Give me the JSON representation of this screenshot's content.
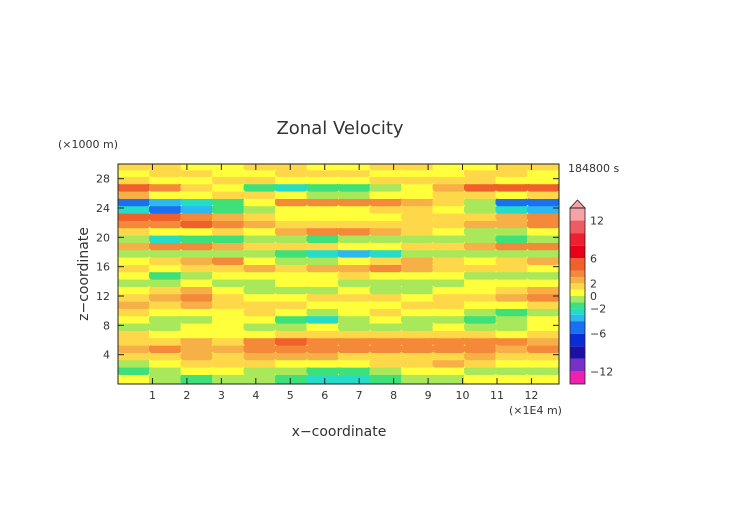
{
  "chart_data": {
    "type": "heatmap",
    "title": "Zonal Velocity",
    "xlabel": "x−coordinate",
    "ylabel": "z−coordinate",
    "x_unit": "(×1E4 m)",
    "y_unit": "(×1000 m)",
    "time_label": "184800 s",
    "xlim": [
      0,
      12.8
    ],
    "ylim": [
      0,
      30
    ],
    "x_ticks": [
      "1",
      "2",
      "3",
      "4",
      "5",
      "6",
      "7",
      "8",
      "9",
      "10",
      "11",
      "12"
    ],
    "y_ticks": [
      "4",
      "8",
      "12",
      "16",
      "20",
      "24",
      "28"
    ],
    "colorbar": {
      "tick_labels": [
        "12",
        "6",
        "2",
        "0",
        "−2",
        "−6",
        "−12"
      ],
      "tick_values": [
        12,
        6,
        2,
        0,
        -2,
        -6,
        -12
      ],
      "levels": [
        {
          "min": 12,
          "max": 14,
          "color": "#f6a3a8"
        },
        {
          "min": 10,
          "max": 12,
          "color": "#f05a64"
        },
        {
          "min": 8,
          "max": 10,
          "color": "#ee1f30"
        },
        {
          "min": 6,
          "max": 8,
          "color": "#e8001a"
        },
        {
          "min": 4,
          "max": 6,
          "color": "#f0602a"
        },
        {
          "min": 3,
          "max": 4,
          "color": "#f5893a"
        },
        {
          "min": 2,
          "max": 3,
          "color": "#f7b048"
        },
        {
          "min": 1,
          "max": 2,
          "color": "#ffd84a"
        },
        {
          "min": 0,
          "max": 1,
          "color": "#ffff3c"
        },
        {
          "min": -1,
          "max": 0,
          "color": "#a8e85a"
        },
        {
          "min": -2,
          "max": -1,
          "color": "#3ee07a"
        },
        {
          "min": -3,
          "max": -2,
          "color": "#24dcc8"
        },
        {
          "min": -4,
          "max": -3,
          "color": "#2cb8f0"
        },
        {
          "min": -6,
          "max": -4,
          "color": "#1a70f0"
        },
        {
          "min": -8,
          "max": -6,
          "color": "#0a2cd8"
        },
        {
          "min": -10,
          "max": -8,
          "color": "#1a10a8"
        },
        {
          "min": -12,
          "max": -10,
          "color": "#7a30c8"
        },
        {
          "min": -14,
          "max": -12,
          "color": "#f020b0"
        }
      ]
    },
    "bands": [
      {
        "z": 0.8,
        "x": 0,
        "values": [
          0,
          -1,
          -2,
          -1,
          -1,
          -2,
          -3,
          -3,
          -2,
          -1,
          -1,
          0,
          0,
          0
        ]
      },
      {
        "z": 1.8,
        "x": 0,
        "values": [
          -2,
          -1,
          0,
          0,
          -1,
          -1,
          -2,
          -2,
          -1,
          0,
          0,
          -1,
          -1,
          -1
        ]
      },
      {
        "z": 2.8,
        "x": 0,
        "values": [
          -1,
          0,
          1,
          1,
          1,
          0,
          0,
          0,
          1,
          1,
          2,
          1,
          0,
          0
        ]
      },
      {
        "z": 3.8,
        "x": 0,
        "values": [
          1,
          1,
          2,
          1,
          2,
          2,
          2,
          1,
          1,
          1,
          1,
          2,
          1,
          1
        ]
      },
      {
        "z": 4.8,
        "x": 0,
        "values": [
          2,
          3,
          2,
          2,
          3,
          3,
          3,
          3,
          3,
          3,
          3,
          3,
          2,
          3
        ]
      },
      {
        "z": 5.8,
        "x": 0,
        "values": [
          1,
          1,
          2,
          1,
          3,
          4,
          3,
          3,
          3,
          3,
          3,
          3,
          3,
          2
        ]
      },
      {
        "z": 6.8,
        "x": 0,
        "values": [
          1,
          0,
          0,
          0,
          0,
          1,
          1,
          1,
          1,
          1,
          1,
          1,
          0,
          1
        ]
      },
      {
        "z": 7.8,
        "x": 0,
        "values": [
          -1,
          -1,
          0,
          0,
          -1,
          -1,
          0,
          -1,
          -1,
          -1,
          0,
          -1,
          -1,
          0
        ]
      },
      {
        "z": 8.8,
        "x": 0,
        "values": [
          0,
          -1,
          -1,
          0,
          0,
          -2,
          -3,
          -1,
          0,
          -1,
          -1,
          -2,
          -1,
          0
        ]
      },
      {
        "z": 9.8,
        "x": 0,
        "values": [
          1,
          0,
          0,
          0,
          1,
          0,
          -1,
          0,
          1,
          0,
          0,
          -1,
          -2,
          -1
        ]
      },
      {
        "z": 10.8,
        "x": 0,
        "values": [
          2,
          1,
          2,
          1,
          1,
          1,
          0,
          0,
          0,
          1,
          1,
          0,
          0,
          1
        ]
      },
      {
        "z": 11.8,
        "x": 0,
        "values": [
          1,
          2,
          3,
          1,
          0,
          0,
          1,
          1,
          1,
          0,
          1,
          1,
          2,
          3
        ]
      },
      {
        "z": 12.8,
        "x": 0,
        "values": [
          0,
          1,
          2,
          0,
          -1,
          -1,
          -1,
          0,
          -1,
          -1,
          0,
          0,
          1,
          2
        ]
      },
      {
        "z": 13.8,
        "x": 0,
        "values": [
          -1,
          -1,
          0,
          -1,
          -1,
          0,
          0,
          -1,
          -1,
          -1,
          -1,
          0,
          0,
          0
        ]
      },
      {
        "z": 14.8,
        "x": 0,
        "values": [
          0,
          -2,
          -1,
          0,
          0,
          0,
          0,
          1,
          0,
          0,
          0,
          -1,
          -1,
          -1
        ]
      },
      {
        "z": 15.8,
        "x": 0,
        "values": [
          1,
          0,
          1,
          1,
          2,
          1,
          2,
          2,
          3,
          2,
          1,
          1,
          1,
          0
        ]
      },
      {
        "z": 16.8,
        "x": 0,
        "values": [
          0,
          1,
          2,
          3,
          0,
          -1,
          -1,
          0,
          1,
          2,
          1,
          0,
          1,
          2
        ]
      },
      {
        "z": 17.8,
        "x": 0,
        "values": [
          -1,
          -1,
          -1,
          -1,
          -1,
          -2,
          -3,
          -4,
          -3,
          -1,
          -1,
          -1,
          -1,
          -1
        ]
      },
      {
        "z": 18.8,
        "x": 0,
        "values": [
          2,
          3,
          3,
          2,
          1,
          1,
          1,
          0,
          0,
          1,
          1,
          2,
          3,
          3
        ]
      },
      {
        "z": 19.8,
        "x": 0,
        "values": [
          -1,
          -3,
          -2,
          -2,
          -1,
          -1,
          -2,
          -1,
          -1,
          -1,
          -1,
          -1,
          -2,
          -1
        ]
      },
      {
        "z": 20.8,
        "x": 0,
        "values": [
          1,
          0,
          0,
          1,
          0,
          2,
          3,
          3,
          2,
          1,
          0,
          -1,
          -1,
          0
        ]
      },
      {
        "z": 21.8,
        "x": 0,
        "values": [
          3,
          3,
          4,
          3,
          2,
          1,
          1,
          1,
          1,
          1,
          1,
          2,
          2,
          3
        ]
      },
      {
        "z": 22.8,
        "x": 0,
        "values": [
          4,
          4,
          3,
          2,
          1,
          0,
          0,
          0,
          0,
          1,
          1,
          1,
          2,
          3
        ]
      },
      {
        "z": 23.8,
        "x": 0,
        "values": [
          -3,
          -5,
          -4,
          -2,
          -1,
          0,
          0,
          0,
          1,
          1,
          0,
          -1,
          -3,
          -4
        ]
      },
      {
        "z": 24.8,
        "x": 0,
        "values": [
          -5,
          -4,
          -3,
          -2,
          0,
          3,
          3,
          3,
          3,
          2,
          1,
          -1,
          -5,
          -5
        ]
      },
      {
        "z": 25.8,
        "x": 0,
        "values": [
          2,
          0,
          0,
          1,
          1,
          0,
          -1,
          -1,
          0,
          0,
          1,
          1,
          0,
          1
        ]
      },
      {
        "z": 26.8,
        "x": 0,
        "values": [
          4,
          3,
          1,
          0,
          -2,
          -3,
          -2,
          -2,
          -1,
          0,
          2,
          4,
          4,
          4
        ]
      },
      {
        "z": 27.8,
        "x": 0,
        "values": [
          1,
          0,
          0,
          1,
          1,
          0,
          0,
          0,
          1,
          1,
          1,
          1,
          0,
          0
        ]
      },
      {
        "z": 28.8,
        "x": 0,
        "values": [
          0,
          1,
          1,
          0,
          0,
          1,
          1,
          1,
          0,
          0,
          0,
          1,
          1,
          0
        ]
      },
      {
        "z": 29.6,
        "x": 0,
        "values": [
          1,
          1,
          0,
          0,
          1,
          1,
          0,
          0,
          1,
          1,
          0,
          0,
          1,
          1
        ]
      }
    ]
  }
}
